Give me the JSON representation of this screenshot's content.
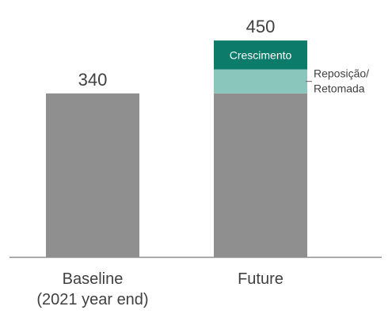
{
  "chart_data": {
    "type": "bar",
    "categories": [
      "Baseline\n(2021 year end)",
      "Future"
    ],
    "totals": [
      340,
      450
    ],
    "stacked": true,
    "series": [
      {
        "name": "",
        "values": [
          340,
          340
        ],
        "color": "#8f8f8f"
      },
      {
        "name": "Reposição/\nRetomada",
        "values": [
          0,
          50
        ],
        "color": "#8ac6bc"
      },
      {
        "name": "Crescimento",
        "values": [
          0,
          60
        ],
        "color": "#0d7b6a"
      }
    ],
    "ylim": [
      0,
      465
    ],
    "grid": false,
    "axis_color": "#8f8f8f",
    "text_color": "#404040",
    "segment_text_color": "#ffffff",
    "callout_line_color": "#666666"
  }
}
